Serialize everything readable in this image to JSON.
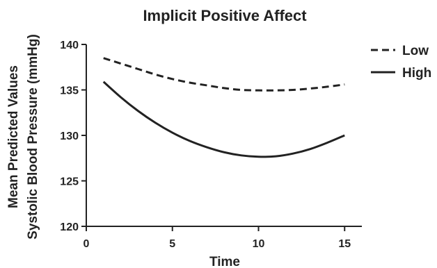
{
  "chart_data": {
    "type": "line",
    "title": "Implicit Positive Affect",
    "xlabel": "Time",
    "ylabel_lines": [
      "Mean Predicted Values",
      "Systolic Blood Pressure (mmHg)"
    ],
    "xlim": [
      0,
      16
    ],
    "ylim": [
      120,
      140
    ],
    "x_ticks": [
      "0",
      "5",
      "10",
      "15"
    ],
    "y_ticks": [
      "120",
      "125",
      "130",
      "135",
      "140"
    ],
    "grid": false,
    "legend_position": "top-right",
    "series": [
      {
        "name": "Low",
        "style": "dashed",
        "color": "#222222",
        "x": [
          1,
          2,
          3,
          4,
          5,
          6,
          7,
          8,
          9,
          10,
          11,
          12,
          13,
          14,
          15
        ],
        "y": [
          138.5,
          137.9,
          137.3,
          136.7,
          136.2,
          135.8,
          135.5,
          135.2,
          135.0,
          134.95,
          134.95,
          135.0,
          135.15,
          135.35,
          135.6
        ]
      },
      {
        "name": "High",
        "style": "solid",
        "color": "#222222",
        "x": [
          1,
          2,
          3,
          4,
          5,
          6,
          7,
          8,
          9,
          10,
          11,
          12,
          13,
          14,
          15
        ],
        "y": [
          135.9,
          134.2,
          132.7,
          131.4,
          130.3,
          129.4,
          128.7,
          128.15,
          127.8,
          127.65,
          127.7,
          128.0,
          128.5,
          129.2,
          130.0
        ]
      }
    ]
  }
}
